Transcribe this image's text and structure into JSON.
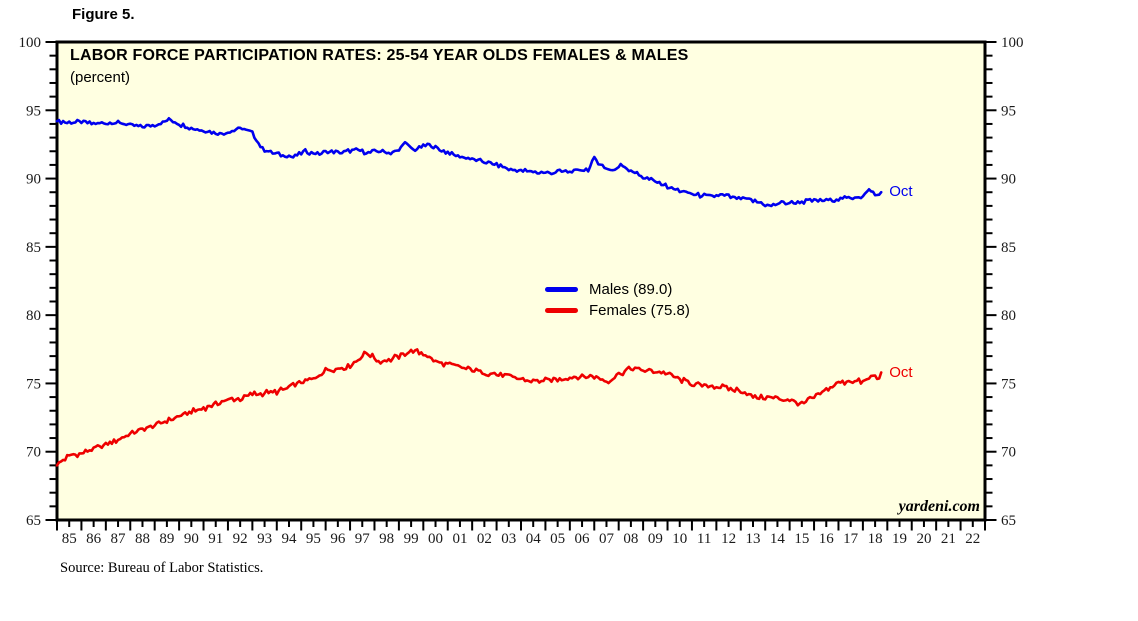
{
  "figure_label": "Figure 5.",
  "source_note": "Source: Bureau of Labor Statistics.",
  "watermark": "yardeni.com",
  "chart_data": {
    "type": "line",
    "title": "LABOR FORCE PARTICIPATION RATES: 25-54 YEAR OLDS FEMALES & MALES",
    "subtitle": "(percent)",
    "xlim": [
      1985,
      2023
    ],
    "ylim": [
      65,
      100
    ],
    "y_major_ticks": [
      65,
      70,
      75,
      80,
      85,
      90,
      95,
      100
    ],
    "y_minor_step": 1,
    "x_tick_labels": [
      "85",
      "86",
      "87",
      "88",
      "89",
      "90",
      "91",
      "92",
      "93",
      "94",
      "95",
      "96",
      "97",
      "98",
      "99",
      "00",
      "01",
      "02",
      "03",
      "04",
      "05",
      "06",
      "07",
      "08",
      "09",
      "10",
      "11",
      "12",
      "13",
      "14",
      "15",
      "16",
      "17",
      "18",
      "19",
      "20",
      "21",
      "22"
    ],
    "grid": false,
    "plot_background": "#FFFFE1",
    "axis_color": "#000000",
    "legend_position": "center",
    "legend": [
      {
        "label": "Males (89.0)",
        "color": "#0000EE"
      },
      {
        "label": "Females (75.8)",
        "color": "#EE0000"
      }
    ],
    "series": [
      {
        "name": "Males",
        "color": "#0000EE",
        "frequency": "monthly",
        "end_label": "Oct",
        "latest_value": 89.0,
        "anchors": [
          [
            1985.0,
            94.2
          ],
          [
            1985.5,
            94.1
          ],
          [
            1986.0,
            94.15
          ],
          [
            1986.5,
            94.0
          ],
          [
            1987.0,
            94.05
          ],
          [
            1987.5,
            94.1
          ],
          [
            1988.0,
            93.9
          ],
          [
            1988.5,
            93.8
          ],
          [
            1989.0,
            93.9
          ],
          [
            1989.6,
            94.3
          ],
          [
            1990.0,
            94.0
          ],
          [
            1990.5,
            93.7
          ],
          [
            1991.0,
            93.5
          ],
          [
            1991.7,
            93.3
          ],
          [
            1992.2,
            93.5
          ],
          [
            1992.6,
            93.7
          ],
          [
            1993.0,
            93.3
          ],
          [
            1993.4,
            92.2
          ],
          [
            1993.8,
            91.9
          ],
          [
            1994.2,
            91.7
          ],
          [
            1994.7,
            91.6
          ],
          [
            1995.2,
            92.0
          ],
          [
            1995.7,
            91.8
          ],
          [
            1996.2,
            92.0
          ],
          [
            1996.7,
            91.9
          ],
          [
            1997.2,
            92.1
          ],
          [
            1997.7,
            91.9
          ],
          [
            1998.2,
            92.0
          ],
          [
            1998.7,
            91.9
          ],
          [
            1999.0,
            92.0
          ],
          [
            1999.2,
            92.7
          ],
          [
            1999.6,
            92.1
          ],
          [
            2000.2,
            92.5
          ],
          [
            2000.7,
            92.1
          ],
          [
            2001.0,
            91.9
          ],
          [
            2001.5,
            91.6
          ],
          [
            2002.0,
            91.4
          ],
          [
            2002.5,
            91.2
          ],
          [
            2003.0,
            91.0
          ],
          [
            2003.5,
            90.7
          ],
          [
            2004.0,
            90.6
          ],
          [
            2004.5,
            90.5
          ],
          [
            2005.0,
            90.4
          ],
          [
            2005.5,
            90.5
          ],
          [
            2006.0,
            90.5
          ],
          [
            2006.8,
            90.7
          ],
          [
            2007.0,
            91.5
          ],
          [
            2007.4,
            90.8
          ],
          [
            2007.8,
            90.6
          ],
          [
            2008.1,
            91.0
          ],
          [
            2008.5,
            90.6
          ],
          [
            2009.0,
            90.1
          ],
          [
            2009.5,
            89.8
          ],
          [
            2010.0,
            89.4
          ],
          [
            2010.7,
            89.0
          ],
          [
            2011.2,
            88.8
          ],
          [
            2011.7,
            88.7
          ],
          [
            2012.2,
            88.8
          ],
          [
            2012.7,
            88.6
          ],
          [
            2013.2,
            88.5
          ],
          [
            2013.7,
            88.3
          ],
          [
            2014.1,
            88.0
          ],
          [
            2014.6,
            88.2
          ],
          [
            2015.0,
            88.2
          ],
          [
            2015.5,
            88.3
          ],
          [
            2016.0,
            88.4
          ],
          [
            2016.5,
            88.4
          ],
          [
            2017.0,
            88.5
          ],
          [
            2017.5,
            88.6
          ],
          [
            2018.0,
            88.7
          ],
          [
            2018.3,
            89.2
          ],
          [
            2018.55,
            88.7
          ],
          [
            2018.75,
            89.0
          ]
        ]
      },
      {
        "name": "Females",
        "color": "#EE0000",
        "frequency": "monthly",
        "end_label": "Oct",
        "latest_value": 75.8,
        "anchors": [
          [
            1985.0,
            69.0
          ],
          [
            1985.15,
            69.3
          ],
          [
            1985.5,
            69.7
          ],
          [
            1986.0,
            69.9
          ],
          [
            1986.5,
            70.2
          ],
          [
            1987.0,
            70.5
          ],
          [
            1987.5,
            70.9
          ],
          [
            1988.0,
            71.3
          ],
          [
            1988.5,
            71.6
          ],
          [
            1989.0,
            71.9
          ],
          [
            1989.5,
            72.3
          ],
          [
            1990.0,
            72.6
          ],
          [
            1990.5,
            72.9
          ],
          [
            1991.0,
            73.2
          ],
          [
            1991.5,
            73.5
          ],
          [
            1992.0,
            73.8
          ],
          [
            1992.5,
            73.9
          ],
          [
            1993.0,
            74.2
          ],
          [
            1993.5,
            74.3
          ],
          [
            1994.0,
            74.4
          ],
          [
            1994.5,
            74.7
          ],
          [
            1995.0,
            75.1
          ],
          [
            1995.5,
            75.3
          ],
          [
            1996.0,
            76.0
          ],
          [
            1996.5,
            76.1
          ],
          [
            1997.0,
            76.3
          ],
          [
            1997.7,
            77.3
          ],
          [
            1998.2,
            76.6
          ],
          [
            1998.7,
            76.8
          ],
          [
            1999.0,
            77.0
          ],
          [
            1999.5,
            77.4
          ],
          [
            2000.0,
            77.2
          ],
          [
            2000.5,
            76.6
          ],
          [
            2001.0,
            76.4
          ],
          [
            2001.5,
            76.2
          ],
          [
            2002.0,
            76.0
          ],
          [
            2002.5,
            75.8
          ],
          [
            2003.0,
            75.7
          ],
          [
            2003.5,
            75.5
          ],
          [
            2004.0,
            75.3
          ],
          [
            2004.5,
            75.2
          ],
          [
            2005.0,
            75.2
          ],
          [
            2005.5,
            75.3
          ],
          [
            2006.0,
            75.4
          ],
          [
            2006.5,
            75.5
          ],
          [
            2007.0,
            75.5
          ],
          [
            2007.5,
            75.1
          ],
          [
            2008.0,
            75.7
          ],
          [
            2008.5,
            76.1
          ],
          [
            2009.0,
            76.0
          ],
          [
            2009.5,
            75.9
          ],
          [
            2010.0,
            75.7
          ],
          [
            2010.5,
            75.3
          ],
          [
            2011.0,
            75.0
          ],
          [
            2011.5,
            74.8
          ],
          [
            2012.0,
            74.8
          ],
          [
            2012.5,
            74.6
          ],
          [
            2013.0,
            74.5
          ],
          [
            2013.5,
            74.0
          ],
          [
            2014.0,
            74.0
          ],
          [
            2014.5,
            73.9
          ],
          [
            2015.0,
            73.8
          ],
          [
            2015.5,
            73.5
          ],
          [
            2016.0,
            74.0
          ],
          [
            2016.5,
            74.5
          ],
          [
            2017.0,
            75.0
          ],
          [
            2017.5,
            75.2
          ],
          [
            2018.0,
            75.1
          ],
          [
            2018.4,
            75.6
          ],
          [
            2018.6,
            75.3
          ],
          [
            2018.75,
            75.8
          ]
        ]
      }
    ]
  }
}
